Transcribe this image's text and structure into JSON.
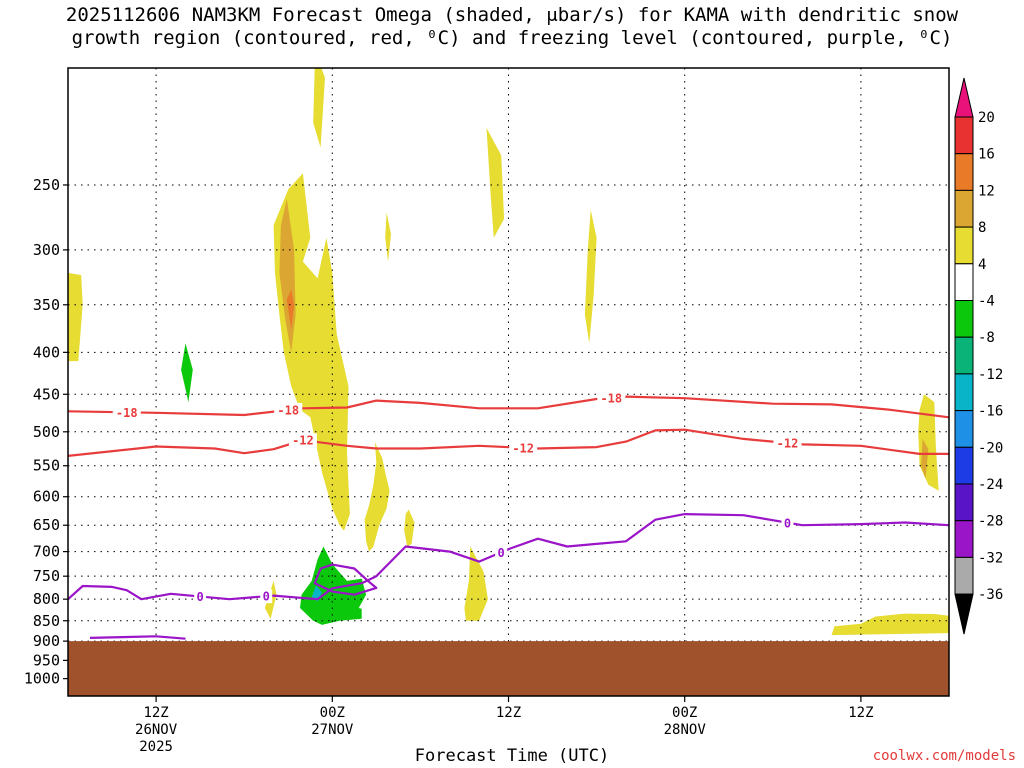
{
  "chart_data": {
    "type": "heatmap",
    "title_line1": "2025112606 NAM3KM Forecast Omega (shaded, μbar/s) for KAMA with dendritic snow",
    "title_line2": "growth region (contoured, red, ⁰C) and freezing level (contoured, purple, ⁰C)",
    "xlabel": "Forecast Time (UTC)",
    "credit": "coolwx.com/models",
    "x_range_hours": [
      6,
      66
    ],
    "y_axis": {
      "scale": "log-pressure",
      "ylim_hPa": [
        1050,
        180
      ],
      "ticks": [
        250,
        300,
        350,
        400,
        450,
        500,
        550,
        600,
        650,
        700,
        750,
        800,
        850,
        900,
        950,
        1000
      ]
    },
    "x_ticks": [
      {
        "hour": 12,
        "label": "12Z",
        "date": "26NOV",
        "year": "2025"
      },
      {
        "hour": 24,
        "label": "00Z",
        "date": "27NOV",
        "year": ""
      },
      {
        "hour": 36,
        "label": "12Z",
        "date": "",
        "year": ""
      },
      {
        "hour": 48,
        "label": "00Z",
        "date": "28NOV",
        "year": ""
      },
      {
        "hour": 60,
        "label": "12Z",
        "date": "",
        "year": ""
      }
    ],
    "grid": true,
    "surface_pressure_hPa": 900,
    "colorbar": {
      "labels": [
        "20",
        "16",
        "12",
        "8",
        "4",
        "-4",
        "-8",
        "-12",
        "-16",
        "-20",
        "-24",
        "-28",
        "-32",
        "-36"
      ],
      "bins": [
        {
          "color": "#e8127a",
          "kind": "tri-top"
        },
        {
          "color": "#e83232"
        },
        {
          "color": "#e87a28"
        },
        {
          "color": "#dca632"
        },
        {
          "color": "#e6dc32"
        },
        {
          "color": "#ffffff"
        },
        {
          "color": "#0cc80c"
        },
        {
          "color": "#0ab478"
        },
        {
          "color": "#0ab4c8"
        },
        {
          "color": "#1e90e6"
        },
        {
          "color": "#1e3ce6"
        },
        {
          "color": "#5a14c8"
        },
        {
          "color": "#9a14c8"
        },
        {
          "color": "#aaaaaa"
        },
        {
          "color": "#000000",
          "kind": "tri-bottom"
        }
      ]
    },
    "contours": [
      {
        "name": "-18",
        "color": "#e83c3c",
        "labels_at_hours": [
          10,
          21,
          43
        ],
        "points": [
          [
            6,
            472
          ],
          [
            12,
            474
          ],
          [
            18,
            477
          ],
          [
            22,
            468
          ],
          [
            25,
            467
          ],
          [
            27,
            458
          ],
          [
            30,
            461
          ],
          [
            34,
            468
          ],
          [
            38,
            468
          ],
          [
            42,
            456
          ],
          [
            44,
            453
          ],
          [
            48,
            455
          ],
          [
            54,
            462
          ],
          [
            58,
            463
          ],
          [
            62,
            470
          ],
          [
            66,
            480
          ]
        ]
      },
      {
        "name": "-12",
        "color": "#e83c3c",
        "labels_at_hours": [
          22,
          37,
          55
        ],
        "points": [
          [
            6,
            535
          ],
          [
            12,
            521
          ],
          [
            16,
            524
          ],
          [
            18,
            531
          ],
          [
            20,
            525
          ],
          [
            22,
            512
          ],
          [
            25,
            520
          ],
          [
            27,
            524
          ],
          [
            30,
            524
          ],
          [
            34,
            520
          ],
          [
            38,
            524
          ],
          [
            42,
            522
          ],
          [
            44,
            514
          ],
          [
            46,
            498
          ],
          [
            48,
            497
          ],
          [
            52,
            510
          ],
          [
            56,
            518
          ],
          [
            60,
            520
          ],
          [
            64,
            532
          ],
          [
            66,
            532
          ]
        ]
      },
      {
        "name": "0",
        "color": "#9a14c8",
        "labels_at_hours": [
          15,
          19.5,
          35.5,
          55
        ],
        "points": [
          [
            6,
            800
          ],
          [
            7,
            771
          ],
          [
            9,
            773
          ],
          [
            10,
            780
          ],
          [
            11,
            800
          ],
          [
            13,
            788
          ],
          [
            17,
            800
          ],
          [
            20,
            792
          ],
          [
            23,
            800
          ],
          [
            24,
            776
          ],
          [
            26,
            765
          ],
          [
            27,
            750
          ],
          [
            29,
            690
          ],
          [
            32,
            700
          ],
          [
            34,
            720
          ],
          [
            36,
            695
          ],
          [
            38,
            675
          ],
          [
            40,
            690
          ],
          [
            42,
            685
          ],
          [
            44,
            680
          ],
          [
            46,
            640
          ],
          [
            48,
            630
          ],
          [
            52,
            632
          ],
          [
            56,
            650
          ],
          [
            60,
            648
          ],
          [
            63,
            645
          ],
          [
            66,
            650
          ]
        ]
      },
      {
        "name": "0",
        "color": "#9a14c8",
        "labels_at_hours": [],
        "points": [
          [
            7.5,
            892
          ],
          [
            12,
            888
          ],
          [
            14,
            894
          ]
        ]
      },
      {
        "name": "0",
        "color": "#9a14c8",
        "labels_at_hours": [],
        "points": [
          [
            23.2,
            734
          ],
          [
            22.8,
            765
          ],
          [
            24,
            783
          ],
          [
            25.5,
            790
          ],
          [
            27,
            775
          ],
          [
            26.5,
            762
          ],
          [
            25.5,
            734
          ],
          [
            24,
            726
          ],
          [
            23.2,
            734
          ]
        ]
      }
    ],
    "shaded_regions": [
      {
        "color": "#e6dc32",
        "points": [
          [
            6,
            320
          ],
          [
            6.9,
            322
          ],
          [
            7,
            350
          ],
          [
            6.7,
            410
          ],
          [
            6,
            410
          ]
        ]
      },
      {
        "color": "#e6dc32",
        "points": [
          [
            23,
            175
          ],
          [
            23.5,
            185
          ],
          [
            23.2,
            225
          ],
          [
            22.7,
            210
          ],
          [
            22.8,
            180
          ]
        ]
      },
      {
        "color": "#e6dc32",
        "points": [
          [
            20,
            280
          ],
          [
            21,
            253
          ],
          [
            22,
            242
          ],
          [
            22.5,
            290
          ],
          [
            22,
            310
          ],
          [
            23,
            325
          ],
          [
            23.6,
            290
          ],
          [
            24,
            320
          ],
          [
            24.3,
            380
          ],
          [
            25.1,
            440
          ],
          [
            25,
            530
          ],
          [
            25.2,
            630
          ],
          [
            24.8,
            660
          ],
          [
            24.5,
            650
          ],
          [
            24,
            620
          ],
          [
            23.3,
            560
          ],
          [
            22.5,
            480
          ],
          [
            21.8,
            470
          ],
          [
            21.2,
            440
          ],
          [
            20.7,
            400
          ],
          [
            20.4,
            360
          ],
          [
            20.1,
            320
          ]
        ]
      },
      {
        "color": "#e6dc32",
        "points": [
          [
            26.9,
            515
          ],
          [
            27.4,
            538
          ],
          [
            27.6,
            560
          ],
          [
            27.9,
            590
          ],
          [
            27.7,
            620
          ],
          [
            27.2,
            650
          ],
          [
            26.8,
            690
          ],
          [
            26.5,
            700
          ],
          [
            26.3,
            680
          ],
          [
            26.2,
            640
          ],
          [
            26.5,
            615
          ],
          [
            26.8,
            580
          ],
          [
            27,
            545
          ]
        ]
      },
      {
        "color": "#e6dc32",
        "points": [
          [
            29.2,
            622
          ],
          [
            29.6,
            645
          ],
          [
            29.4,
            685
          ],
          [
            29.1,
            690
          ],
          [
            28.9,
            660
          ],
          [
            29,
            630
          ]
        ]
      },
      {
        "color": "#e6dc32",
        "points": [
          [
            27.7,
            270
          ],
          [
            28,
            287
          ],
          [
            27.8,
            310
          ],
          [
            27.6,
            290
          ]
        ]
      },
      {
        "color": "#e6dc32",
        "points": [
          [
            34.5,
            213
          ],
          [
            35.5,
            230
          ],
          [
            35.7,
            275
          ],
          [
            35,
            290
          ],
          [
            34.8,
            260
          ]
        ]
      },
      {
        "color": "#e6dc32",
        "points": [
          [
            41.6,
            268
          ],
          [
            42,
            290
          ],
          [
            41.8,
            340
          ],
          [
            41.5,
            390
          ],
          [
            41.2,
            360
          ],
          [
            41.4,
            300
          ]
        ]
      },
      {
        "color": "#e6dc32",
        "points": [
          [
            33.4,
            690
          ],
          [
            34.3,
            740
          ],
          [
            34.6,
            800
          ],
          [
            34,
            850
          ],
          [
            33.1,
            850
          ],
          [
            33,
            820
          ],
          [
            33.3,
            760
          ]
        ]
      },
      {
        "color": "#e6dc32",
        "points": [
          [
            20,
            760
          ],
          [
            20.2,
            790
          ],
          [
            19.8,
            845
          ],
          [
            19.4,
            820
          ]
        ]
      },
      {
        "color": "#e6dc32",
        "points": [
          [
            64.3,
            450
          ],
          [
            65,
            460
          ],
          [
            65.1,
            520
          ],
          [
            65.3,
            590
          ],
          [
            64.6,
            580
          ],
          [
            64,
            550
          ],
          [
            63.9,
            500
          ],
          [
            64,
            470
          ]
        ]
      },
      {
        "color": "#e6dc32",
        "points": [
          [
            58.2,
            863
          ],
          [
            60,
            857
          ],
          [
            61,
            840
          ],
          [
            63,
            833
          ],
          [
            65,
            834
          ],
          [
            66,
            838
          ],
          [
            66,
            880
          ],
          [
            58,
            885
          ]
        ]
      },
      {
        "color": "#dca632",
        "points": [
          [
            20.9,
            260
          ],
          [
            21.4,
            300
          ],
          [
            21.5,
            360
          ],
          [
            21.2,
            400
          ],
          [
            20.8,
            365
          ],
          [
            20.4,
            320
          ],
          [
            20.5,
            280
          ]
        ]
      },
      {
        "color": "#e87a28",
        "points": [
          [
            21.2,
            335
          ],
          [
            21.4,
            350
          ],
          [
            21.2,
            375
          ],
          [
            20.9,
            345
          ]
        ]
      },
      {
        "color": "#dca632",
        "points": [
          [
            64.2,
            510
          ],
          [
            64.6,
            525
          ],
          [
            64.4,
            570
          ],
          [
            64.1,
            550
          ]
        ]
      },
      {
        "color": "#0cc80c",
        "points": [
          [
            14,
            390
          ],
          [
            14.5,
            420
          ],
          [
            14.2,
            460
          ],
          [
            13.7,
            420
          ]
        ]
      },
      {
        "color": "#0cc80c",
        "points": [
          [
            23.4,
            690
          ],
          [
            24,
            725
          ],
          [
            25,
            760
          ],
          [
            26,
            755
          ],
          [
            26.3,
            790
          ],
          [
            25.8,
            820
          ],
          [
            26,
            822
          ],
          [
            26,
            845
          ],
          [
            24.5,
            850
          ],
          [
            23.3,
            860
          ],
          [
            22.7,
            850
          ],
          [
            21.8,
            820
          ],
          [
            21.9,
            790
          ],
          [
            22.6,
            760
          ],
          [
            23,
            715
          ]
        ]
      },
      {
        "color": "#0ab4c8",
        "points": [
          [
            22.9,
            770
          ],
          [
            23.3,
            785
          ],
          [
            23,
            805
          ],
          [
            22.6,
            795
          ]
        ]
      }
    ]
  }
}
